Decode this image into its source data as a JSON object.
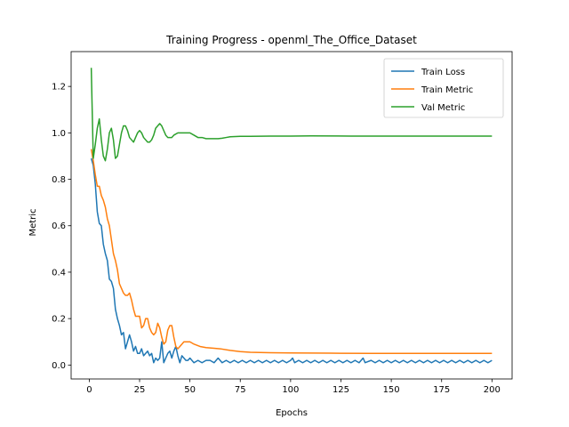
{
  "chart_data": {
    "type": "line",
    "title": "Training Progress - openml_The_Office_Dataset",
    "xlabel": "Epochs",
    "ylabel": "Metric",
    "xlim": [
      -9,
      210
    ],
    "ylim": [
      -0.06,
      1.35
    ],
    "xticks": [
      0,
      25,
      50,
      75,
      100,
      125,
      150,
      175,
      200
    ],
    "yticks": [
      0.0,
      0.2,
      0.4,
      0.6,
      0.8,
      1.0,
      1.2
    ],
    "grid": false,
    "legend_position": "top-right",
    "series": [
      {
        "name": "Train Loss",
        "color": "#1f77b4",
        "points": [
          [
            1,
            0.89
          ],
          [
            2,
            0.86
          ],
          [
            3,
            0.78
          ],
          [
            4,
            0.66
          ],
          [
            5,
            0.61
          ],
          [
            6,
            0.6
          ],
          [
            7,
            0.52
          ],
          [
            8,
            0.48
          ],
          [
            9,
            0.45
          ],
          [
            10,
            0.37
          ],
          [
            11,
            0.36
          ],
          [
            12,
            0.33
          ],
          [
            13,
            0.24
          ],
          [
            14,
            0.2
          ],
          [
            15,
            0.17
          ],
          [
            16,
            0.13
          ],
          [
            17,
            0.14
          ],
          [
            18,
            0.07
          ],
          [
            19,
            0.1
          ],
          [
            20,
            0.13
          ],
          [
            21,
            0.1
          ],
          [
            22,
            0.06
          ],
          [
            23,
            0.08
          ],
          [
            24,
            0.05
          ],
          [
            25,
            0.05
          ],
          [
            26,
            0.07
          ],
          [
            27,
            0.04
          ],
          [
            28,
            0.05
          ],
          [
            29,
            0.06
          ],
          [
            30,
            0.04
          ],
          [
            31,
            0.05
          ],
          [
            32,
            0.01
          ],
          [
            33,
            0.03
          ],
          [
            34,
            0.02
          ],
          [
            35,
            0.03
          ],
          [
            36,
            0.1
          ],
          [
            37,
            0.01
          ],
          [
            38,
            0.03
          ],
          [
            39,
            0.05
          ],
          [
            40,
            0.06
          ],
          [
            41,
            0.03
          ],
          [
            42,
            0.06
          ],
          [
            43,
            0.08
          ],
          [
            44,
            0.04
          ],
          [
            45,
            0.01
          ],
          [
            46,
            0.04
          ],
          [
            47,
            0.03
          ],
          [
            48,
            0.02
          ],
          [
            49,
            0.02
          ],
          [
            50,
            0.03
          ],
          [
            52,
            0.01
          ],
          [
            54,
            0.02
          ],
          [
            56,
            0.01
          ],
          [
            58,
            0.02
          ],
          [
            60,
            0.02
          ],
          [
            62,
            0.01
          ],
          [
            64,
            0.03
          ],
          [
            66,
            0.01
          ],
          [
            68,
            0.02
          ],
          [
            70,
            0.01
          ],
          [
            72,
            0.02
          ],
          [
            74,
            0.01
          ],
          [
            76,
            0.02
          ],
          [
            78,
            0.01
          ],
          [
            80,
            0.02
          ],
          [
            82,
            0.01
          ],
          [
            84,
            0.02
          ],
          [
            86,
            0.01
          ],
          [
            88,
            0.02
          ],
          [
            90,
            0.01
          ],
          [
            92,
            0.02
          ],
          [
            94,
            0.01
          ],
          [
            96,
            0.02
          ],
          [
            98,
            0.01
          ],
          [
            100,
            0.02
          ],
          [
            101,
            0.03
          ],
          [
            102,
            0.01
          ],
          [
            104,
            0.02
          ],
          [
            106,
            0.01
          ],
          [
            108,
            0.02
          ],
          [
            110,
            0.01
          ],
          [
            112,
            0.02
          ],
          [
            114,
            0.01
          ],
          [
            116,
            0.02
          ],
          [
            118,
            0.01
          ],
          [
            120,
            0.02
          ],
          [
            122,
            0.01
          ],
          [
            124,
            0.02
          ],
          [
            126,
            0.01
          ],
          [
            128,
            0.02
          ],
          [
            130,
            0.01
          ],
          [
            132,
            0.02
          ],
          [
            134,
            0.01
          ],
          [
            136,
            0.03
          ],
          [
            137,
            0.01
          ],
          [
            140,
            0.02
          ],
          [
            142,
            0.01
          ],
          [
            144,
            0.02
          ],
          [
            146,
            0.01
          ],
          [
            148,
            0.02
          ],
          [
            150,
            0.01
          ],
          [
            152,
            0.02
          ],
          [
            154,
            0.01
          ],
          [
            156,
            0.02
          ],
          [
            158,
            0.01
          ],
          [
            160,
            0.02
          ],
          [
            162,
            0.01
          ],
          [
            164,
            0.02
          ],
          [
            166,
            0.01
          ],
          [
            168,
            0.02
          ],
          [
            170,
            0.01
          ],
          [
            172,
            0.02
          ],
          [
            174,
            0.01
          ],
          [
            176,
            0.02
          ],
          [
            178,
            0.01
          ],
          [
            180,
            0.02
          ],
          [
            182,
            0.01
          ],
          [
            184,
            0.02
          ],
          [
            186,
            0.01
          ],
          [
            188,
            0.02
          ],
          [
            190,
            0.01
          ],
          [
            192,
            0.02
          ],
          [
            194,
            0.01
          ],
          [
            196,
            0.02
          ],
          [
            198,
            0.01
          ],
          [
            200,
            0.02
          ]
        ]
      },
      {
        "name": "Train Metric",
        "color": "#ff7f0e",
        "points": [
          [
            1,
            0.93
          ],
          [
            2,
            0.88
          ],
          [
            3,
            0.82
          ],
          [
            4,
            0.77
          ],
          [
            5,
            0.77
          ],
          [
            6,
            0.73
          ],
          [
            7,
            0.71
          ],
          [
            8,
            0.68
          ],
          [
            9,
            0.63
          ],
          [
            10,
            0.6
          ],
          [
            11,
            0.54
          ],
          [
            12,
            0.48
          ],
          [
            13,
            0.45
          ],
          [
            14,
            0.41
          ],
          [
            15,
            0.35
          ],
          [
            16,
            0.33
          ],
          [
            17,
            0.31
          ],
          [
            18,
            0.3
          ],
          [
            19,
            0.3
          ],
          [
            20,
            0.31
          ],
          [
            21,
            0.28
          ],
          [
            22,
            0.24
          ],
          [
            23,
            0.21
          ],
          [
            24,
            0.21
          ],
          [
            25,
            0.21
          ],
          [
            26,
            0.16
          ],
          [
            27,
            0.17
          ],
          [
            28,
            0.2
          ],
          [
            29,
            0.2
          ],
          [
            30,
            0.16
          ],
          [
            31,
            0.14
          ],
          [
            32,
            0.13
          ],
          [
            33,
            0.14
          ],
          [
            34,
            0.18
          ],
          [
            35,
            0.16
          ],
          [
            36,
            0.12
          ],
          [
            37,
            0.09
          ],
          [
            38,
            0.1
          ],
          [
            39,
            0.15
          ],
          [
            40,
            0.17
          ],
          [
            41,
            0.17
          ],
          [
            42,
            0.12
          ],
          [
            43,
            0.08
          ],
          [
            44,
            0.07
          ],
          [
            45,
            0.08
          ],
          [
            46,
            0.09
          ],
          [
            47,
            0.1
          ],
          [
            48,
            0.1
          ],
          [
            49,
            0.1
          ],
          [
            50,
            0.1
          ],
          [
            52,
            0.09
          ],
          [
            55,
            0.08
          ],
          [
            58,
            0.075
          ],
          [
            62,
            0.072
          ],
          [
            65,
            0.07
          ],
          [
            70,
            0.063
          ],
          [
            75,
            0.058
          ],
          [
            80,
            0.055
          ],
          [
            90,
            0.053
          ],
          [
            100,
            0.052
          ],
          [
            120,
            0.051
          ],
          [
            140,
            0.05
          ],
          [
            160,
            0.05
          ],
          [
            180,
            0.05
          ],
          [
            200,
            0.05
          ]
        ]
      },
      {
        "name": "Val Metric",
        "color": "#2ca02c",
        "points": [
          [
            1,
            1.28
          ],
          [
            2,
            0.89
          ],
          [
            3,
            0.95
          ],
          [
            4,
            1.02
          ],
          [
            5,
            1.06
          ],
          [
            6,
            0.97
          ],
          [
            7,
            0.9
          ],
          [
            8,
            0.88
          ],
          [
            9,
            0.93
          ],
          [
            10,
            1.0
          ],
          [
            11,
            1.02
          ],
          [
            12,
            0.97
          ],
          [
            13,
            0.89
          ],
          [
            14,
            0.9
          ],
          [
            15,
            0.95
          ],
          [
            16,
            1.0
          ],
          [
            17,
            1.03
          ],
          [
            18,
            1.03
          ],
          [
            19,
            1.01
          ],
          [
            20,
            0.98
          ],
          [
            21,
            0.97
          ],
          [
            22,
            0.96
          ],
          [
            23,
            0.98
          ],
          [
            24,
            1.0
          ],
          [
            25,
            1.01
          ],
          [
            26,
            1.0
          ],
          [
            27,
            0.98
          ],
          [
            28,
            0.97
          ],
          [
            29,
            0.96
          ],
          [
            30,
            0.96
          ],
          [
            31,
            0.97
          ],
          [
            32,
            0.99
          ],
          [
            33,
            1.02
          ],
          [
            34,
            1.03
          ],
          [
            35,
            1.04
          ],
          [
            36,
            1.03
          ],
          [
            37,
            1.01
          ],
          [
            38,
            0.99
          ],
          [
            39,
            0.98
          ],
          [
            40,
            0.98
          ],
          [
            41,
            0.98
          ],
          [
            42,
            0.99
          ],
          [
            44,
            1.0
          ],
          [
            46,
            1.0
          ],
          [
            48,
            1.0
          ],
          [
            50,
            1.0
          ],
          [
            52,
            0.99
          ],
          [
            54,
            0.98
          ],
          [
            56,
            0.98
          ],
          [
            58,
            0.975
          ],
          [
            60,
            0.975
          ],
          [
            62,
            0.975
          ],
          [
            64,
            0.975
          ],
          [
            66,
            0.977
          ],
          [
            68,
            0.98
          ],
          [
            70,
            0.983
          ],
          [
            75,
            0.985
          ],
          [
            80,
            0.985
          ],
          [
            90,
            0.986
          ],
          [
            100,
            0.986
          ],
          [
            110,
            0.987
          ],
          [
            130,
            0.986
          ],
          [
            150,
            0.986
          ],
          [
            170,
            0.986
          ],
          [
            190,
            0.986
          ],
          [
            200,
            0.986
          ]
        ]
      }
    ]
  }
}
